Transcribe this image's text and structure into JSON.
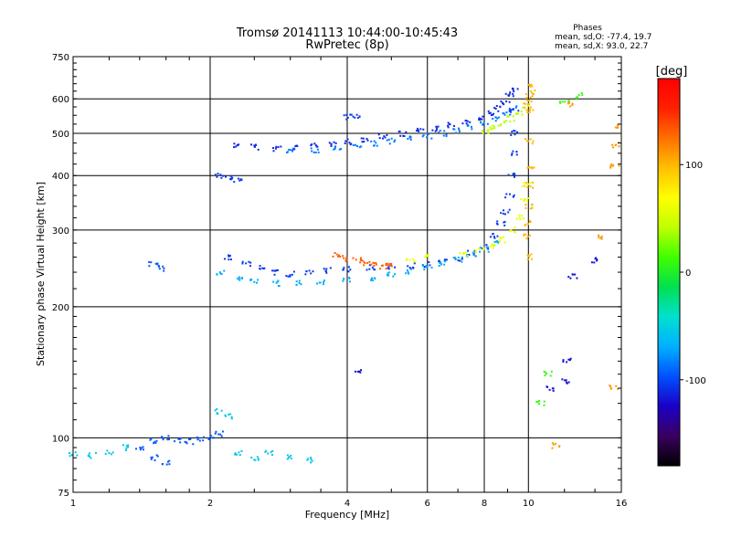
{
  "chart_data": {
    "type": "scatter",
    "title": "Tromsø 20141113 10:44:00-10:45:43",
    "subtitle": "RwPretec (8p)",
    "phases_info": {
      "heading": "Phases",
      "line1": "mean, sd,O: -77.4, 19.7",
      "line2": "mean, sd,X:  93.0, 22.7"
    },
    "xlabel": "Frequency [MHz]",
    "ylabel": "Stationary phase Virtual Height [km]",
    "x_scale": "log",
    "y_scale": "log",
    "xlim": [
      1,
      16
    ],
    "ylim": [
      75,
      750
    ],
    "x_ticks": [
      1,
      2,
      4,
      6,
      8,
      10,
      16
    ],
    "y_ticks": [
      75,
      100,
      200,
      300,
      400,
      500,
      600,
      750
    ],
    "grid": true,
    "colorbar": {
      "label": "[deg]",
      "range": [
        -180,
        180
      ],
      "ticks": [
        100,
        0,
        -100
      ],
      "colormap": [
        "#000000",
        "#3a0060",
        "#1a00c8",
        "#0050ff",
        "#00b0ff",
        "#00e0d0",
        "#00e050",
        "#40ff00",
        "#c0ff00",
        "#ffff00",
        "#ffc000",
        "#ff7000",
        "#ff2000",
        "#ff0000"
      ]
    },
    "series": [
      {
        "phase": -110,
        "points": [
          [
            2.3,
            470
          ],
          [
            2.5,
            465
          ],
          [
            2.8,
            462
          ],
          [
            3.1,
            465
          ],
          [
            3.4,
            468
          ],
          [
            3.7,
            472
          ],
          [
            4.0,
            478
          ],
          [
            4.4,
            485
          ],
          [
            4.8,
            492
          ],
          [
            5.3,
            498
          ],
          [
            5.8,
            505
          ],
          [
            6.3,
            512
          ],
          [
            6.8,
            522
          ],
          [
            7.3,
            533
          ],
          [
            7.8,
            545
          ],
          [
            8.2,
            555
          ],
          [
            8.6,
            570
          ],
          [
            8.9,
            590
          ],
          [
            9.1,
            610
          ],
          [
            9.3,
            625
          ]
        ]
      },
      {
        "phase": -85,
        "points": [
          [
            3.0,
            455
          ],
          [
            3.4,
            458
          ],
          [
            3.8,
            462
          ],
          [
            4.2,
            468
          ],
          [
            4.6,
            474
          ],
          [
            5.0,
            480
          ],
          [
            5.5,
            486
          ],
          [
            6.0,
            492
          ],
          [
            6.5,
            500
          ],
          [
            7.0,
            508
          ],
          [
            7.5,
            518
          ],
          [
            8.0,
            528
          ],
          [
            8.5,
            540
          ],
          [
            9.0,
            555
          ],
          [
            9.3,
            570
          ]
        ]
      },
      {
        "phase": 40,
        "points": [
          [
            8.0,
            505
          ],
          [
            8.4,
            515
          ],
          [
            8.8,
            528
          ],
          [
            9.2,
            540
          ],
          [
            9.6,
            555
          ],
          [
            9.9,
            570
          ]
        ]
      },
      {
        "phase": 100,
        "points": [
          [
            9.9,
            580
          ],
          [
            10.0,
            600
          ],
          [
            10.1,
            620
          ],
          [
            10.2,
            640
          ],
          [
            10.15,
            560
          ],
          [
            10.05,
            480
          ],
          [
            10.1,
            420
          ],
          [
            10.0,
            380
          ],
          [
            10.05,
            340
          ],
          [
            10.0,
            310
          ],
          [
            9.95,
            290
          ],
          [
            10.1,
            260
          ]
        ]
      },
      {
        "phase": -105,
        "points": [
          [
            4.0,
            545
          ],
          [
            4.2,
            550
          ],
          [
            2.1,
            400
          ],
          [
            2.2,
            395
          ],
          [
            2.3,
            390
          ],
          [
            2.2,
            260
          ],
          [
            2.4,
            250
          ],
          [
            2.6,
            245
          ],
          [
            2.8,
            240
          ],
          [
            3.0,
            238
          ],
          [
            3.3,
            240
          ],
          [
            3.6,
            242
          ],
          [
            4.0,
            244
          ],
          [
            4.5,
            246
          ],
          [
            5.0,
            247
          ],
          [
            5.5,
            248
          ],
          [
            6.0,
            250
          ],
          [
            6.5,
            253
          ],
          [
            7.0,
            258
          ],
          [
            7.5,
            265
          ],
          [
            8.0,
            275
          ],
          [
            8.4,
            290
          ],
          [
            8.7,
            310
          ],
          [
            8.9,
            330
          ],
          [
            9.1,
            360
          ],
          [
            9.2,
            400
          ],
          [
            9.25,
            450
          ],
          [
            9.3,
            500
          ],
          [
            9.3,
            560
          ]
        ]
      },
      {
        "phase": -70,
        "points": [
          [
            2.1,
            240
          ],
          [
            2.3,
            232
          ],
          [
            2.5,
            228
          ],
          [
            2.8,
            226
          ],
          [
            3.1,
            226
          ],
          [
            3.5,
            228
          ],
          [
            4.0,
            230
          ],
          [
            4.5,
            233
          ],
          [
            5.0,
            237
          ],
          [
            5.5,
            241
          ],
          [
            6.0,
            246
          ],
          [
            6.5,
            251
          ],
          [
            7.0,
            257
          ],
          [
            7.5,
            263
          ],
          [
            8.0,
            270
          ],
          [
            8.5,
            280
          ]
        ]
      },
      {
        "phase": 130,
        "points": [
          [
            3.8,
            262
          ],
          [
            4.0,
            258
          ],
          [
            4.2,
            255
          ],
          [
            4.4,
            252
          ],
          [
            4.6,
            250
          ],
          [
            4.8,
            248
          ],
          [
            5.0,
            250
          ]
        ]
      },
      {
        "phase": 60,
        "points": [
          [
            5.5,
            255
          ],
          [
            6.0,
            260
          ],
          [
            7.2,
            265
          ],
          [
            7.8,
            270
          ],
          [
            8.3,
            275
          ],
          [
            8.8,
            285
          ],
          [
            9.3,
            300
          ],
          [
            9.6,
            320
          ],
          [
            9.8,
            350
          ],
          [
            9.9,
            380
          ]
        ]
      },
      {
        "phase": -95,
        "points": [
          [
            1.5,
            250
          ],
          [
            1.55,
            245
          ],
          [
            1.4,
            95
          ],
          [
            1.5,
            98
          ],
          [
            1.6,
            100
          ],
          [
            1.7,
            99
          ],
          [
            1.8,
            98
          ],
          [
            1.9,
            99
          ],
          [
            2.0,
            100
          ],
          [
            2.1,
            102
          ],
          [
            1.5,
            90
          ],
          [
            1.6,
            88
          ]
        ]
      },
      {
        "phase": -55,
        "points": [
          [
            1.0,
            92
          ],
          [
            1.1,
            91
          ],
          [
            1.2,
            93
          ],
          [
            1.3,
            95
          ],
          [
            2.1,
            115
          ],
          [
            2.2,
            112
          ],
          [
            2.3,
            92
          ],
          [
            2.5,
            90
          ],
          [
            2.7,
            92
          ],
          [
            3.0,
            90
          ],
          [
            3.3,
            89
          ]
        ]
      },
      {
        "phase": 110,
        "points": [
          [
            11.5,
            96
          ],
          [
            12.5,
            580
          ],
          [
            14.5,
            290
          ],
          [
            15.5,
            520
          ],
          [
            15.6,
            470
          ],
          [
            15.5,
            420
          ],
          [
            15.4,
            130
          ]
        ]
      },
      {
        "phase": 10,
        "points": [
          [
            12.0,
            590
          ],
          [
            13.0,
            610
          ],
          [
            10.6,
            120
          ],
          [
            11.0,
            140
          ]
        ]
      },
      {
        "phase": -120,
        "points": [
          [
            12.2,
            150
          ],
          [
            12.0,
            135
          ],
          [
            14.0,
            255
          ],
          [
            12.5,
            235
          ],
          [
            11.2,
            130
          ],
          [
            4.2,
            142
          ]
        ]
      }
    ]
  }
}
